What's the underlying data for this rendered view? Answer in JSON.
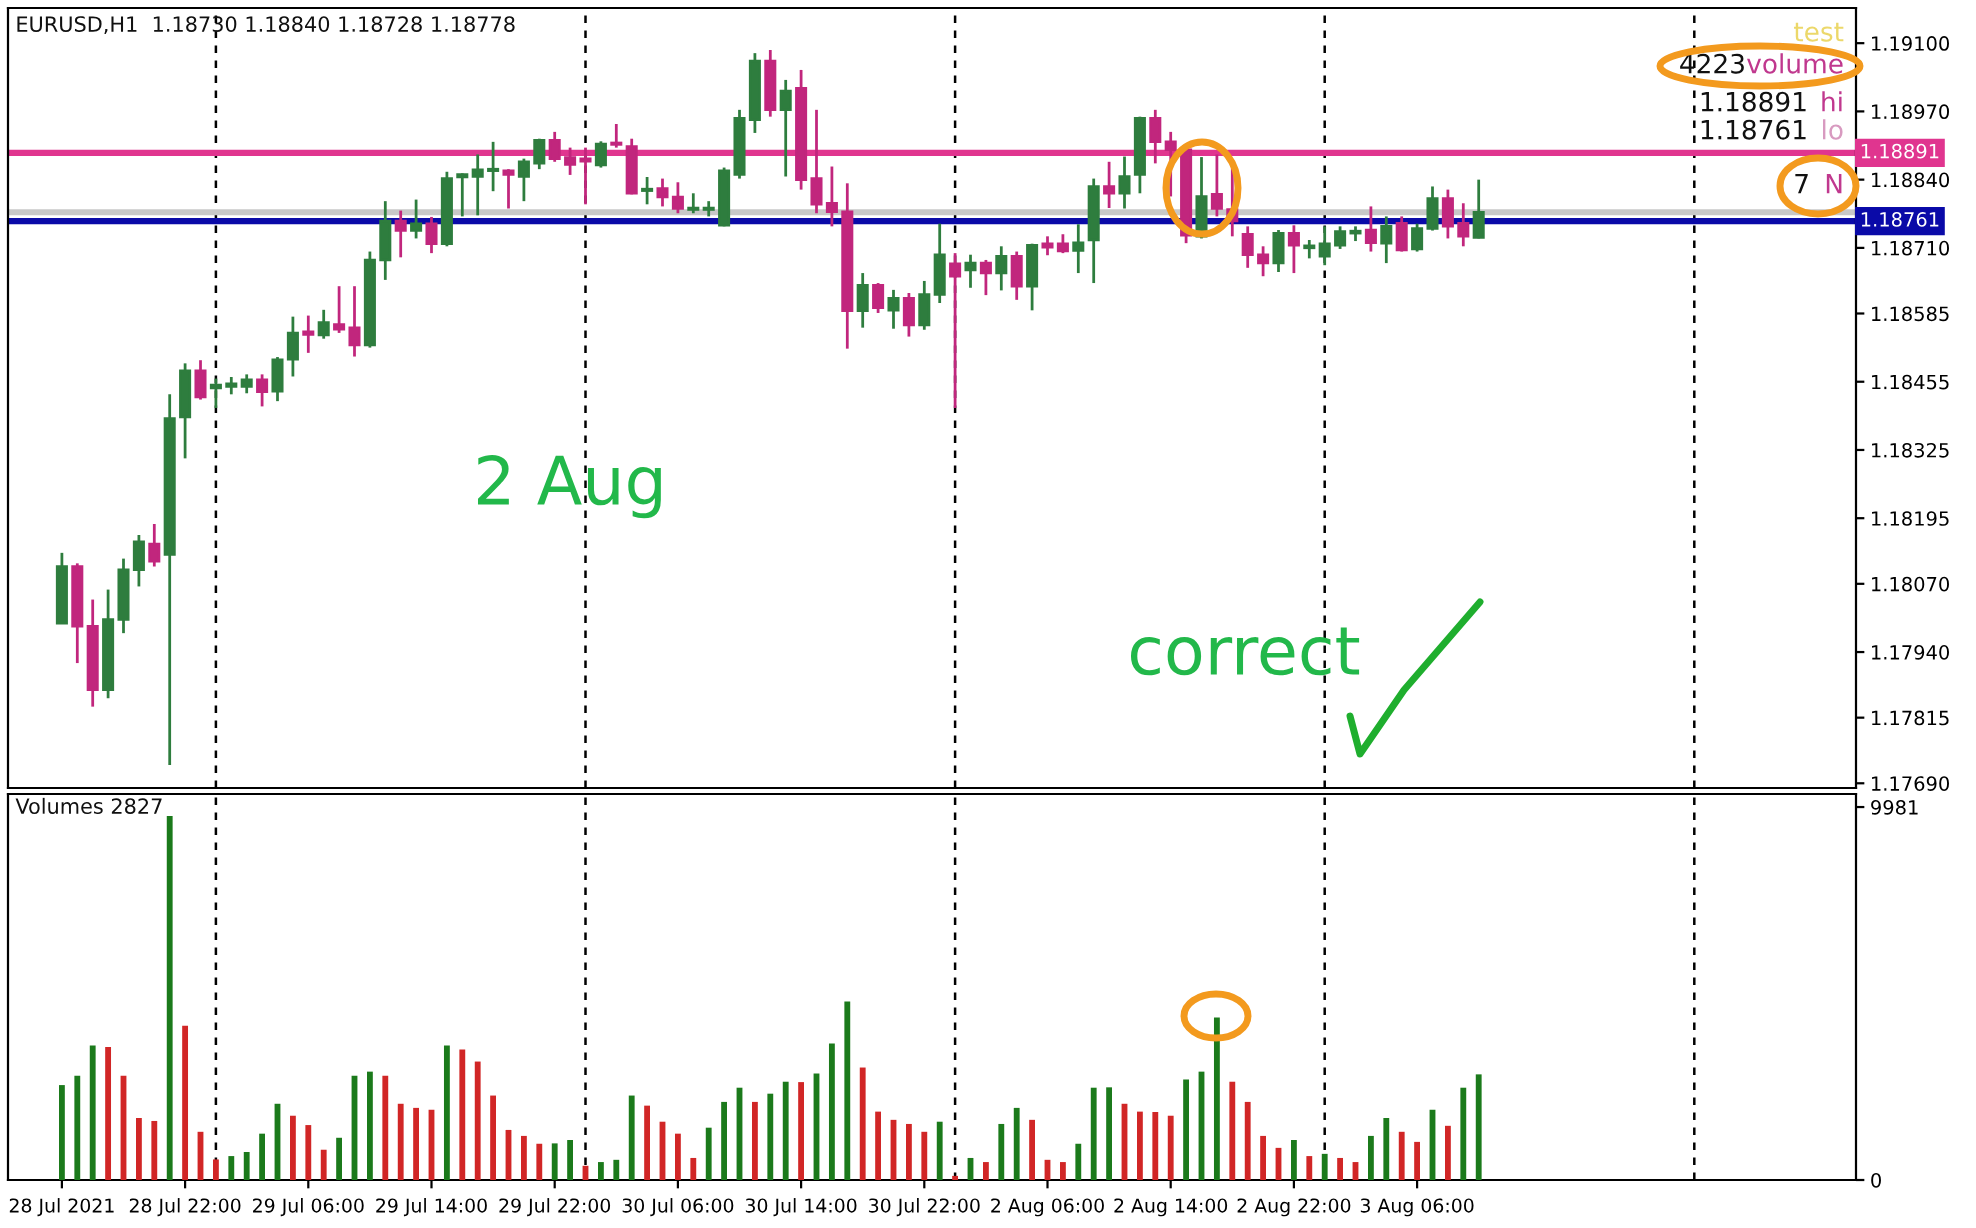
{
  "chart_data": [
    {
      "type": "candlestick",
      "title": "EURUSD,H1  1.18730 1.18840 1.18728 1.18778",
      "categories": [
        null,
        null,
        null,
        null,
        null,
        null,
        null,
        null,
        null,
        null,
        null,
        null,
        null,
        null,
        null,
        null,
        null,
        null,
        null,
        null,
        null,
        null,
        null,
        null,
        null,
        null,
        null,
        null,
        null,
        null,
        null,
        null,
        null,
        null,
        null,
        null,
        null,
        null,
        null,
        null,
        null,
        null,
        null,
        null,
        null,
        null,
        null,
        null,
        null,
        null,
        null,
        null,
        null,
        null,
        null,
        null,
        null,
        null,
        null,
        null,
        null,
        null,
        null,
        null,
        null,
        null,
        null,
        null,
        null,
        null,
        null,
        null,
        null,
        null,
        null,
        null,
        null,
        null,
        null,
        null,
        null,
        null,
        null,
        null,
        null,
        null,
        null,
        null,
        null,
        null,
        null,
        null,
        null,
        null,
        null,
        null,
        null,
        null,
        null,
        null,
        null,
        null,
        null,
        null,
        null,
        null,
        null,
        null,
        null,
        null,
        null,
        null,
        null,
        null,
        null,
        null,
        null
      ],
      "ohlc": [
        [
          1.17995,
          1.18129,
          1.17995,
          1.18103
        ],
        [
          1.18103,
          1.18109,
          1.17919,
          1.17989
        ],
        [
          1.17989,
          1.1804,
          1.17836,
          1.17868
        ],
        [
          1.17868,
          1.18059,
          1.17852,
          1.18002
        ],
        [
          1.18002,
          1.18118,
          1.17976,
          1.18097
        ],
        [
          1.18097,
          1.18163,
          1.18065,
          1.1815
        ],
        [
          1.18146,
          1.18184,
          1.18103,
          1.18113
        ],
        [
          1.18126,
          1.18431,
          1.17725,
          1.18385
        ],
        [
          1.18388,
          1.1849,
          1.18309,
          1.18476
        ],
        [
          1.18476,
          1.18496,
          1.18421,
          1.18426
        ],
        [
          1.18443,
          1.18461,
          1.18405,
          1.18449
        ],
        [
          1.18446,
          1.18464,
          1.18431,
          1.18451
        ],
        [
          1.18446,
          1.18469,
          1.18433,
          1.18459
        ],
        [
          1.18459,
          1.18469,
          1.18408,
          1.18436
        ],
        [
          1.18437,
          1.18502,
          1.18418,
          1.18497
        ],
        [
          1.18498,
          1.18579,
          1.18465,
          1.18548
        ],
        [
          1.1855,
          1.18581,
          1.1851,
          1.18545
        ],
        [
          1.18544,
          1.18592,
          1.18537,
          1.18568
        ],
        [
          1.18564,
          1.18637,
          1.18548,
          1.18555
        ],
        [
          1.18558,
          1.18637,
          1.18503,
          1.18525
        ],
        [
          1.18525,
          1.18703,
          1.1852,
          1.18687
        ],
        [
          1.18687,
          1.18799,
          1.18649,
          1.18761
        ],
        [
          1.18761,
          1.18781,
          1.18692,
          1.18743
        ],
        [
          1.18743,
          1.18802,
          1.18728,
          1.18756
        ],
        [
          1.18756,
          1.18769,
          1.187,
          1.18718
        ],
        [
          1.18718,
          1.18855,
          1.18713,
          1.18842
        ],
        [
          1.18845,
          1.18852,
          1.1877,
          1.1885
        ],
        [
          1.18846,
          1.18888,
          1.18772,
          1.18859
        ],
        [
          1.18857,
          1.18912,
          1.18818,
          1.1886
        ],
        [
          1.18857,
          1.1886,
          1.18785,
          1.1885
        ],
        [
          1.18846,
          1.1888,
          1.18799,
          1.18874
        ],
        [
          1.18871,
          1.18918,
          1.1886,
          1.18915
        ],
        [
          1.18915,
          1.18931,
          1.18874,
          1.1888
        ],
        [
          1.18882,
          1.18901,
          1.18849,
          1.18869
        ],
        [
          1.1888,
          1.18901,
          1.18793,
          1.18875
        ],
        [
          1.18868,
          1.18913,
          1.18863,
          1.18908
        ],
        [
          1.1891,
          1.18946,
          1.18901,
          1.18907
        ],
        [
          1.18903,
          1.18918,
          1.18812,
          1.18814
        ],
        [
          1.18819,
          1.18845,
          1.18793,
          1.18822
        ],
        [
          1.18823,
          1.18842,
          1.18789,
          1.18807
        ],
        [
          1.18807,
          1.18835,
          1.18776,
          1.18785
        ],
        [
          1.18783,
          1.18814,
          1.18776,
          1.18786
        ],
        [
          1.18783,
          1.18799,
          1.1877,
          1.18786
        ],
        [
          1.18753,
          1.18863,
          1.18751,
          1.18857
        ],
        [
          1.1885,
          1.18973,
          1.18842,
          1.18957
        ],
        [
          1.18954,
          1.19081,
          1.18929,
          1.19066
        ],
        [
          1.19066,
          1.19087,
          1.1896,
          1.18973
        ],
        [
          1.18973,
          1.1903,
          1.18846,
          1.19009
        ],
        [
          1.19014,
          1.19049,
          1.18821,
          1.1884
        ],
        [
          1.18842,
          1.18973,
          1.18776,
          1.18793
        ],
        [
          1.18795,
          1.18865,
          1.18751,
          1.18779
        ],
        [
          1.18779,
          1.18833,
          1.18518,
          1.1859
        ],
        [
          1.1859,
          1.18662,
          1.18558,
          1.18639
        ],
        [
          1.18639,
          1.18643,
          1.18586,
          1.18596
        ],
        [
          1.18591,
          1.1863,
          1.18556,
          1.18614
        ],
        [
          1.18614,
          1.18624,
          1.18541,
          1.18563
        ],
        [
          1.18563,
          1.18647,
          1.18554,
          1.18621
        ],
        [
          1.18621,
          1.18756,
          1.18605,
          1.18697
        ],
        [
          1.1868,
          1.187,
          1.18405,
          1.18656
        ],
        [
          1.18668,
          1.18697,
          1.18634,
          1.18681
        ],
        [
          1.18681,
          1.18687,
          1.1862,
          1.18662
        ],
        [
          1.18662,
          1.18713,
          1.18629,
          1.18694
        ],
        [
          1.18694,
          1.18703,
          1.18611,
          1.18637
        ],
        [
          1.18637,
          1.18718,
          1.18591,
          1.18715
        ],
        [
          1.18718,
          1.18732,
          1.18696,
          1.18711
        ],
        [
          1.18718,
          1.18736,
          1.187,
          1.18704
        ],
        [
          1.18705,
          1.18755,
          1.18662,
          1.1872
        ],
        [
          1.18725,
          1.18842,
          1.18643,
          1.18827
        ],
        [
          1.18827,
          1.18874,
          1.18786,
          1.18814
        ],
        [
          1.18814,
          1.18884,
          1.18785,
          1.18846
        ],
        [
          1.1885,
          1.1896,
          1.18814,
          1.18957
        ],
        [
          1.18957,
          1.18973,
          1.18871,
          1.18912
        ],
        [
          1.18912,
          1.18931,
          1.18808,
          1.18897
        ],
        [
          1.18897,
          1.189,
          1.18719,
          1.18734
        ],
        [
          1.18732,
          1.18883,
          1.18728,
          1.18808
        ],
        [
          1.18812,
          1.18888,
          1.1877,
          1.18785
        ],
        [
          1.18783,
          1.18863,
          1.18732,
          1.18761
        ],
        [
          1.18736,
          1.18751,
          1.18672,
          1.18697
        ],
        [
          1.18697,
          1.18713,
          1.18656,
          1.18681
        ],
        [
          1.18681,
          1.18744,
          1.18664,
          1.18738
        ],
        [
          1.18738,
          1.18753,
          1.18662,
          1.18715
        ],
        [
          1.1871,
          1.18725,
          1.1869,
          1.18714
        ],
        [
          1.18694,
          1.18751,
          1.18677,
          1.18718
        ],
        [
          1.18715,
          1.18751,
          1.18708,
          1.18741
        ],
        [
          1.18738,
          1.18751,
          1.18723,
          1.18742
        ],
        [
          1.18744,
          1.18789,
          1.18703,
          1.1872
        ],
        [
          1.18719,
          1.1877,
          1.18681,
          1.18751
        ],
        [
          1.18757,
          1.1877,
          1.18703,
          1.18706
        ],
        [
          1.18708,
          1.18756,
          1.18703,
          1.18747
        ],
        [
          1.18747,
          1.18827,
          1.18743,
          1.18804
        ],
        [
          1.18804,
          1.18821,
          1.18728,
          1.18751
        ],
        [
          1.18757,
          1.18795,
          1.18713,
          1.18732
        ],
        [
          1.1873,
          1.1884,
          1.18728,
          1.18778
        ],
        null,
        null,
        null,
        null,
        null,
        null,
        null,
        null,
        null,
        null,
        null,
        null,
        null,
        null,
        null,
        null,
        null,
        null,
        null,
        null,
        null,
        null,
        null,
        null
      ],
      "colors": [
        "#2e7d3e",
        "#c1267d",
        "#c1267d",
        "#2e7d3e",
        "#2e7d3e",
        "#2e7d3e",
        "#c1267d",
        "#2e7d3e",
        "#2e7d3e",
        "#c1267d",
        "#2e7d3e",
        "#2e7d3e",
        "#2e7d3e",
        "#c1267d",
        "#2e7d3e",
        "#2e7d3e",
        "#c1267d",
        "#2e7d3e",
        "#c1267d",
        "#c1267d",
        "#2e7d3e",
        "#2e7d3e",
        "#c1267d",
        "#2e7d3e",
        "#c1267d",
        "#2e7d3e",
        "#2e7d3e",
        "#2e7d3e",
        "#2e7d3e",
        "#c1267d",
        "#2e7d3e",
        "#2e7d3e",
        "#c1267d",
        "#c1267d",
        "#c1267d",
        "#2e7d3e",
        "#c1267d",
        "#c1267d",
        "#2e7d3e",
        "#c1267d",
        "#c1267d",
        "#2e7d3e",
        "#2e7d3e",
        "#2e7d3e",
        "#2e7d3e",
        "#2e7d3e",
        "#c1267d",
        "#2e7d3e",
        "#c1267d",
        "#c1267d",
        "#c1267d",
        "#c1267d",
        "#2e7d3e",
        "#c1267d",
        "#2e7d3e",
        "#c1267d",
        "#2e7d3e",
        "#2e7d3e",
        "#c1267d",
        "#2e7d3e",
        "#c1267d",
        "#2e7d3e",
        "#c1267d",
        "#2e7d3e",
        "#c1267d",
        "#c1267d",
        "#2e7d3e",
        "#2e7d3e",
        "#c1267d",
        "#2e7d3e",
        "#2e7d3e",
        "#c1267d",
        "#c1267d",
        "#c1267d",
        "#2e7d3e",
        "#c1267d",
        "#c1267d",
        "#c1267d",
        "#c1267d",
        "#2e7d3e",
        "#c1267d",
        "#2e7d3e",
        "#2e7d3e",
        "#2e7d3e",
        "#2e7d3e",
        "#c1267d",
        "#2e7d3e",
        "#c1267d",
        "#2e7d3e",
        "#2e7d3e",
        "#c1267d",
        "#c1267d",
        "#2e7d3e",
        null,
        null,
        null,
        null,
        null,
        null,
        null,
        null,
        null,
        null,
        null,
        null,
        null,
        null,
        null,
        null,
        null,
        null,
        null,
        null,
        null,
        null,
        null,
        null
      ],
      "ylim": [
        1.17681,
        1.19167
      ],
      "yticks": [
        {
          "value": 1.191,
          "label": "1.19100"
        },
        {
          "value": 1.1897,
          "label": "1.18970"
        },
        {
          "value": 1.1884,
          "label": "1.18840"
        },
        {
          "value": 1.1871,
          "label": "1.18710"
        },
        {
          "value": 1.18585,
          "label": "1.18585"
        },
        {
          "value": 1.18455,
          "label": "1.18455"
        },
        {
          "value": 1.18325,
          "label": "1.18325"
        },
        {
          "value": 1.18195,
          "label": "1.18195"
        },
        {
          "value": 1.1807,
          "label": "1.18070"
        },
        {
          "value": 1.1794,
          "label": "1.17940"
        },
        {
          "value": 1.17815,
          "label": "1.17815"
        },
        {
          "value": 1.1769,
          "label": "1.17690"
        }
      ],
      "tick_labels": "y",
      "grid": "x",
      "ref_lines": [
        {
          "axis": "y",
          "value": 1.18891,
          "label": "1.18891",
          "color": "#e0358f",
          "line_style": "solid"
        },
        {
          "axis": "y",
          "value": 1.18778,
          "color": "#c8c8c8",
          "line_style": "solid"
        },
        {
          "axis": "y",
          "value": 1.18761,
          "label": "1.18761",
          "color": "#0a0aa8",
          "line_style": "solid"
        }
      ],
      "annotations": [
        "test",
        "4223",
        "volume",
        "1.18891",
        "hi",
        "1.18761",
        "lo",
        "7",
        "N",
        "2 Aug",
        "correct"
      ]
    },
    {
      "type": "bar",
      "title": "Volumes 2827",
      "categories": [
        "28 Jul 2021",
        null,
        null,
        null,
        null,
        null,
        null,
        null,
        "28 Jul 22:00",
        null,
        null,
        null,
        null,
        null,
        null,
        null,
        "29 Jul 06:00",
        null,
        null,
        null,
        null,
        null,
        null,
        null,
        "29 Jul 14:00",
        null,
        null,
        null,
        null,
        null,
        null,
        null,
        "29 Jul 22:00",
        null,
        null,
        null,
        null,
        null,
        null,
        null,
        "30 Jul 06:00",
        null,
        null,
        null,
        null,
        null,
        null,
        null,
        "30 Jul 14:00",
        null,
        null,
        null,
        null,
        null,
        null,
        null,
        "30 Jul 22:00",
        null,
        null,
        null,
        null,
        null,
        null,
        null,
        "2 Aug 06:00",
        null,
        null,
        null,
        null,
        null,
        null,
        null,
        "2 Aug 14:00",
        null,
        null,
        null,
        null,
        null,
        null,
        null,
        "2 Aug 22:00",
        null,
        null,
        null,
        null,
        null,
        null,
        null,
        "3 Aug 06:00",
        null,
        null,
        null,
        null,
        null,
        null,
        null,
        null,
        null,
        null,
        null,
        null,
        null,
        null,
        null,
        null,
        null,
        null,
        null,
        null,
        null,
        null,
        null,
        null,
        null,
        null,
        null,
        null
      ],
      "values": [
        2540,
        2790,
        3600,
        3560,
        2790,
        1660,
        1580,
        9740,
        4130,
        1290,
        550,
        640,
        750,
        1240,
        2040,
        1720,
        1470,
        810,
        1130,
        2790,
        2900,
        2790,
        2040,
        1930,
        1880,
        3600,
        3490,
        3170,
        2260,
        1340,
        1180,
        970,
        980,
        1070,
        380,
        480,
        540,
        2260,
        1990,
        1560,
        1240,
        590,
        1400,
        2090,
        2470,
        2090,
        2310,
        2630,
        2620,
        2850,
        3650,
        4780,
        3010,
        1830,
        1610,
        1500,
        1290,
        1560,
        110,
        590,
        480,
        1500,
        1930,
        1610,
        540,
        480,
        970,
        2470,
        2480,
        2040,
        1830,
        1820,
        1720,
        2690,
        2900,
        4350,
        2630,
        2090,
        1180,
        860,
        1070,
        640,
        700,
        590,
        480,
        1180,
        1660,
        1290,
        1020,
        1880,
        1450,
        2470,
        2827,
        null,
        null,
        null,
        null,
        null,
        null,
        null,
        null,
        null,
        null,
        null,
        null,
        null,
        null,
        null,
        null,
        null,
        null,
        null,
        null,
        null,
        null,
        null,
        null
      ],
      "colors": [
        "#1b7a1b",
        "#1b7a1b",
        "#1b7a1b",
        "#d12626",
        "#d12626",
        "#d12626",
        "#d12626",
        "#1b7a1b",
        "#d12626",
        "#d12626",
        "#d12626",
        "#1b7a1b",
        "#1b7a1b",
        "#1b7a1b",
        "#1b7a1b",
        "#d12626",
        "#d12626",
        "#d12626",
        "#1b7a1b",
        "#1b7a1b",
        "#1b7a1b",
        "#d12626",
        "#d12626",
        "#d12626",
        "#d12626",
        "#1b7a1b",
        "#d12626",
        "#d12626",
        "#d12626",
        "#d12626",
        "#d12626",
        "#d12626",
        "#1b7a1b",
        "#1b7a1b",
        "#d12626",
        "#1b7a1b",
        "#1b7a1b",
        "#1b7a1b",
        "#d12626",
        "#d12626",
        "#d12626",
        "#d12626",
        "#1b7a1b",
        "#1b7a1b",
        "#1b7a1b",
        "#d12626",
        "#1b7a1b",
        "#1b7a1b",
        "#d12626",
        "#1b7a1b",
        "#1b7a1b",
        "#1b7a1b",
        "#d12626",
        "#d12626",
        "#d12626",
        "#d12626",
        "#d12626",
        "#1b7a1b",
        "#d12626",
        "#1b7a1b",
        "#d12626",
        "#1b7a1b",
        "#1b7a1b",
        "#d12626",
        "#d12626",
        "#d12626",
        "#1b7a1b",
        "#1b7a1b",
        "#1b7a1b",
        "#d12626",
        "#d12626",
        "#d12626",
        "#d12626",
        "#1b7a1b",
        "#1b7a1b",
        "#1b7a1b",
        "#d12626",
        "#d12626",
        "#d12626",
        "#d12626",
        "#1b7a1b",
        "#d12626",
        "#1b7a1b",
        "#d12626",
        "#d12626",
        "#1b7a1b",
        "#1b7a1b",
        "#d12626",
        "#d12626",
        "#1b7a1b",
        "#d12626",
        "#1b7a1b",
        "#1b7a1b",
        null,
        null,
        null,
        null,
        null,
        null,
        null,
        null,
        null,
        null,
        null,
        null,
        null,
        null,
        null,
        null,
        null,
        null,
        null,
        null,
        null,
        null,
        null,
        null
      ],
      "ylim": [
        0,
        10330
      ],
      "yticks": [
        0,
        9981
      ],
      "grid": "x"
    }
  ]
}
